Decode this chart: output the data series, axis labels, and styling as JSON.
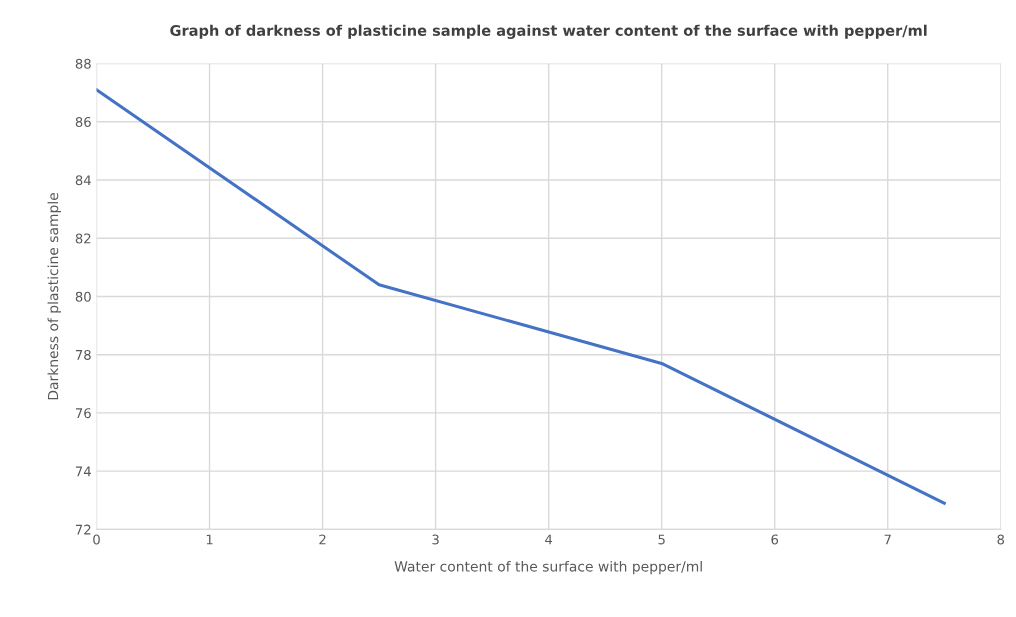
{
  "chart_data": {
    "type": "line",
    "title": "Graph of darkness of plasticine sample against water content of the surface with pepper/ml",
    "xlabel": "Water content of the surface with pepper/ml",
    "ylabel": "Darkness of plasticine sample",
    "series": [
      {
        "color": "#4472c4",
        "x": [
          0,
          2.5,
          5,
          7.5
        ],
        "values": [
          87.1,
          80.4,
          77.7,
          72.9
        ]
      }
    ],
    "xlim": [
      0,
      8
    ],
    "xticks": [
      0,
      1,
      2,
      3,
      4,
      5,
      6,
      7,
      8
    ],
    "ylim": [
      72,
      88
    ],
    "yticks": [
      72,
      74,
      76,
      78,
      80,
      82,
      84,
      86,
      88
    ],
    "grid": true,
    "marker": "none",
    "line_style": "solid"
  }
}
